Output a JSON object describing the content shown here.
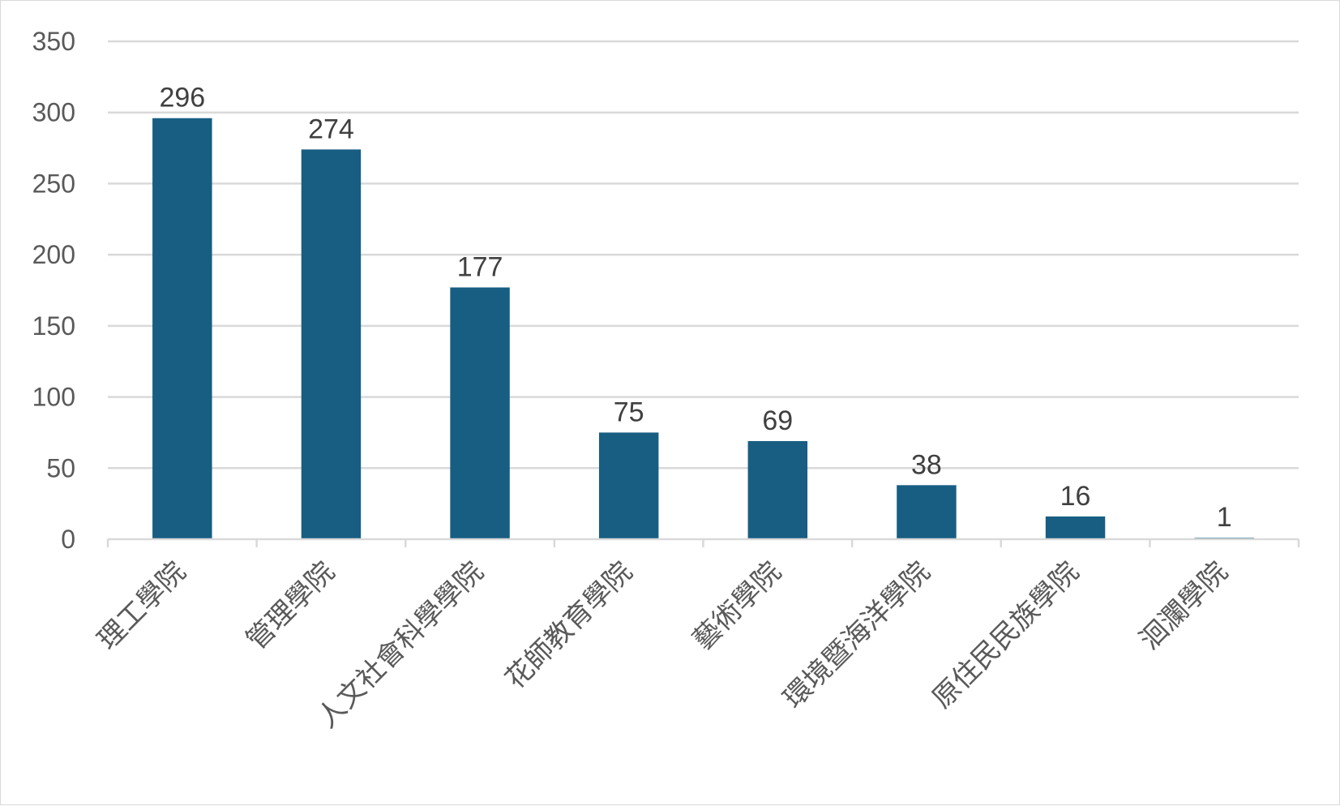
{
  "chart_data": {
    "type": "bar",
    "title": "",
    "xlabel": "",
    "ylabel": "",
    "categories": [
      "理工學院",
      "管理學院",
      "人文社會科學學院",
      "花師教育學院",
      "藝術學院",
      "環境暨海洋學院",
      "原住民民族學院",
      "洄瀾學院"
    ],
    "values": [
      296,
      274,
      177,
      75,
      69,
      38,
      16,
      1
    ],
    "ylim": [
      0,
      350
    ],
    "yticks": [
      0,
      50,
      100,
      150,
      200,
      250,
      300,
      350
    ],
    "grid": true,
    "legend": "none",
    "bar_color": "#175e82",
    "grid_color": "#d9d9d9"
  }
}
